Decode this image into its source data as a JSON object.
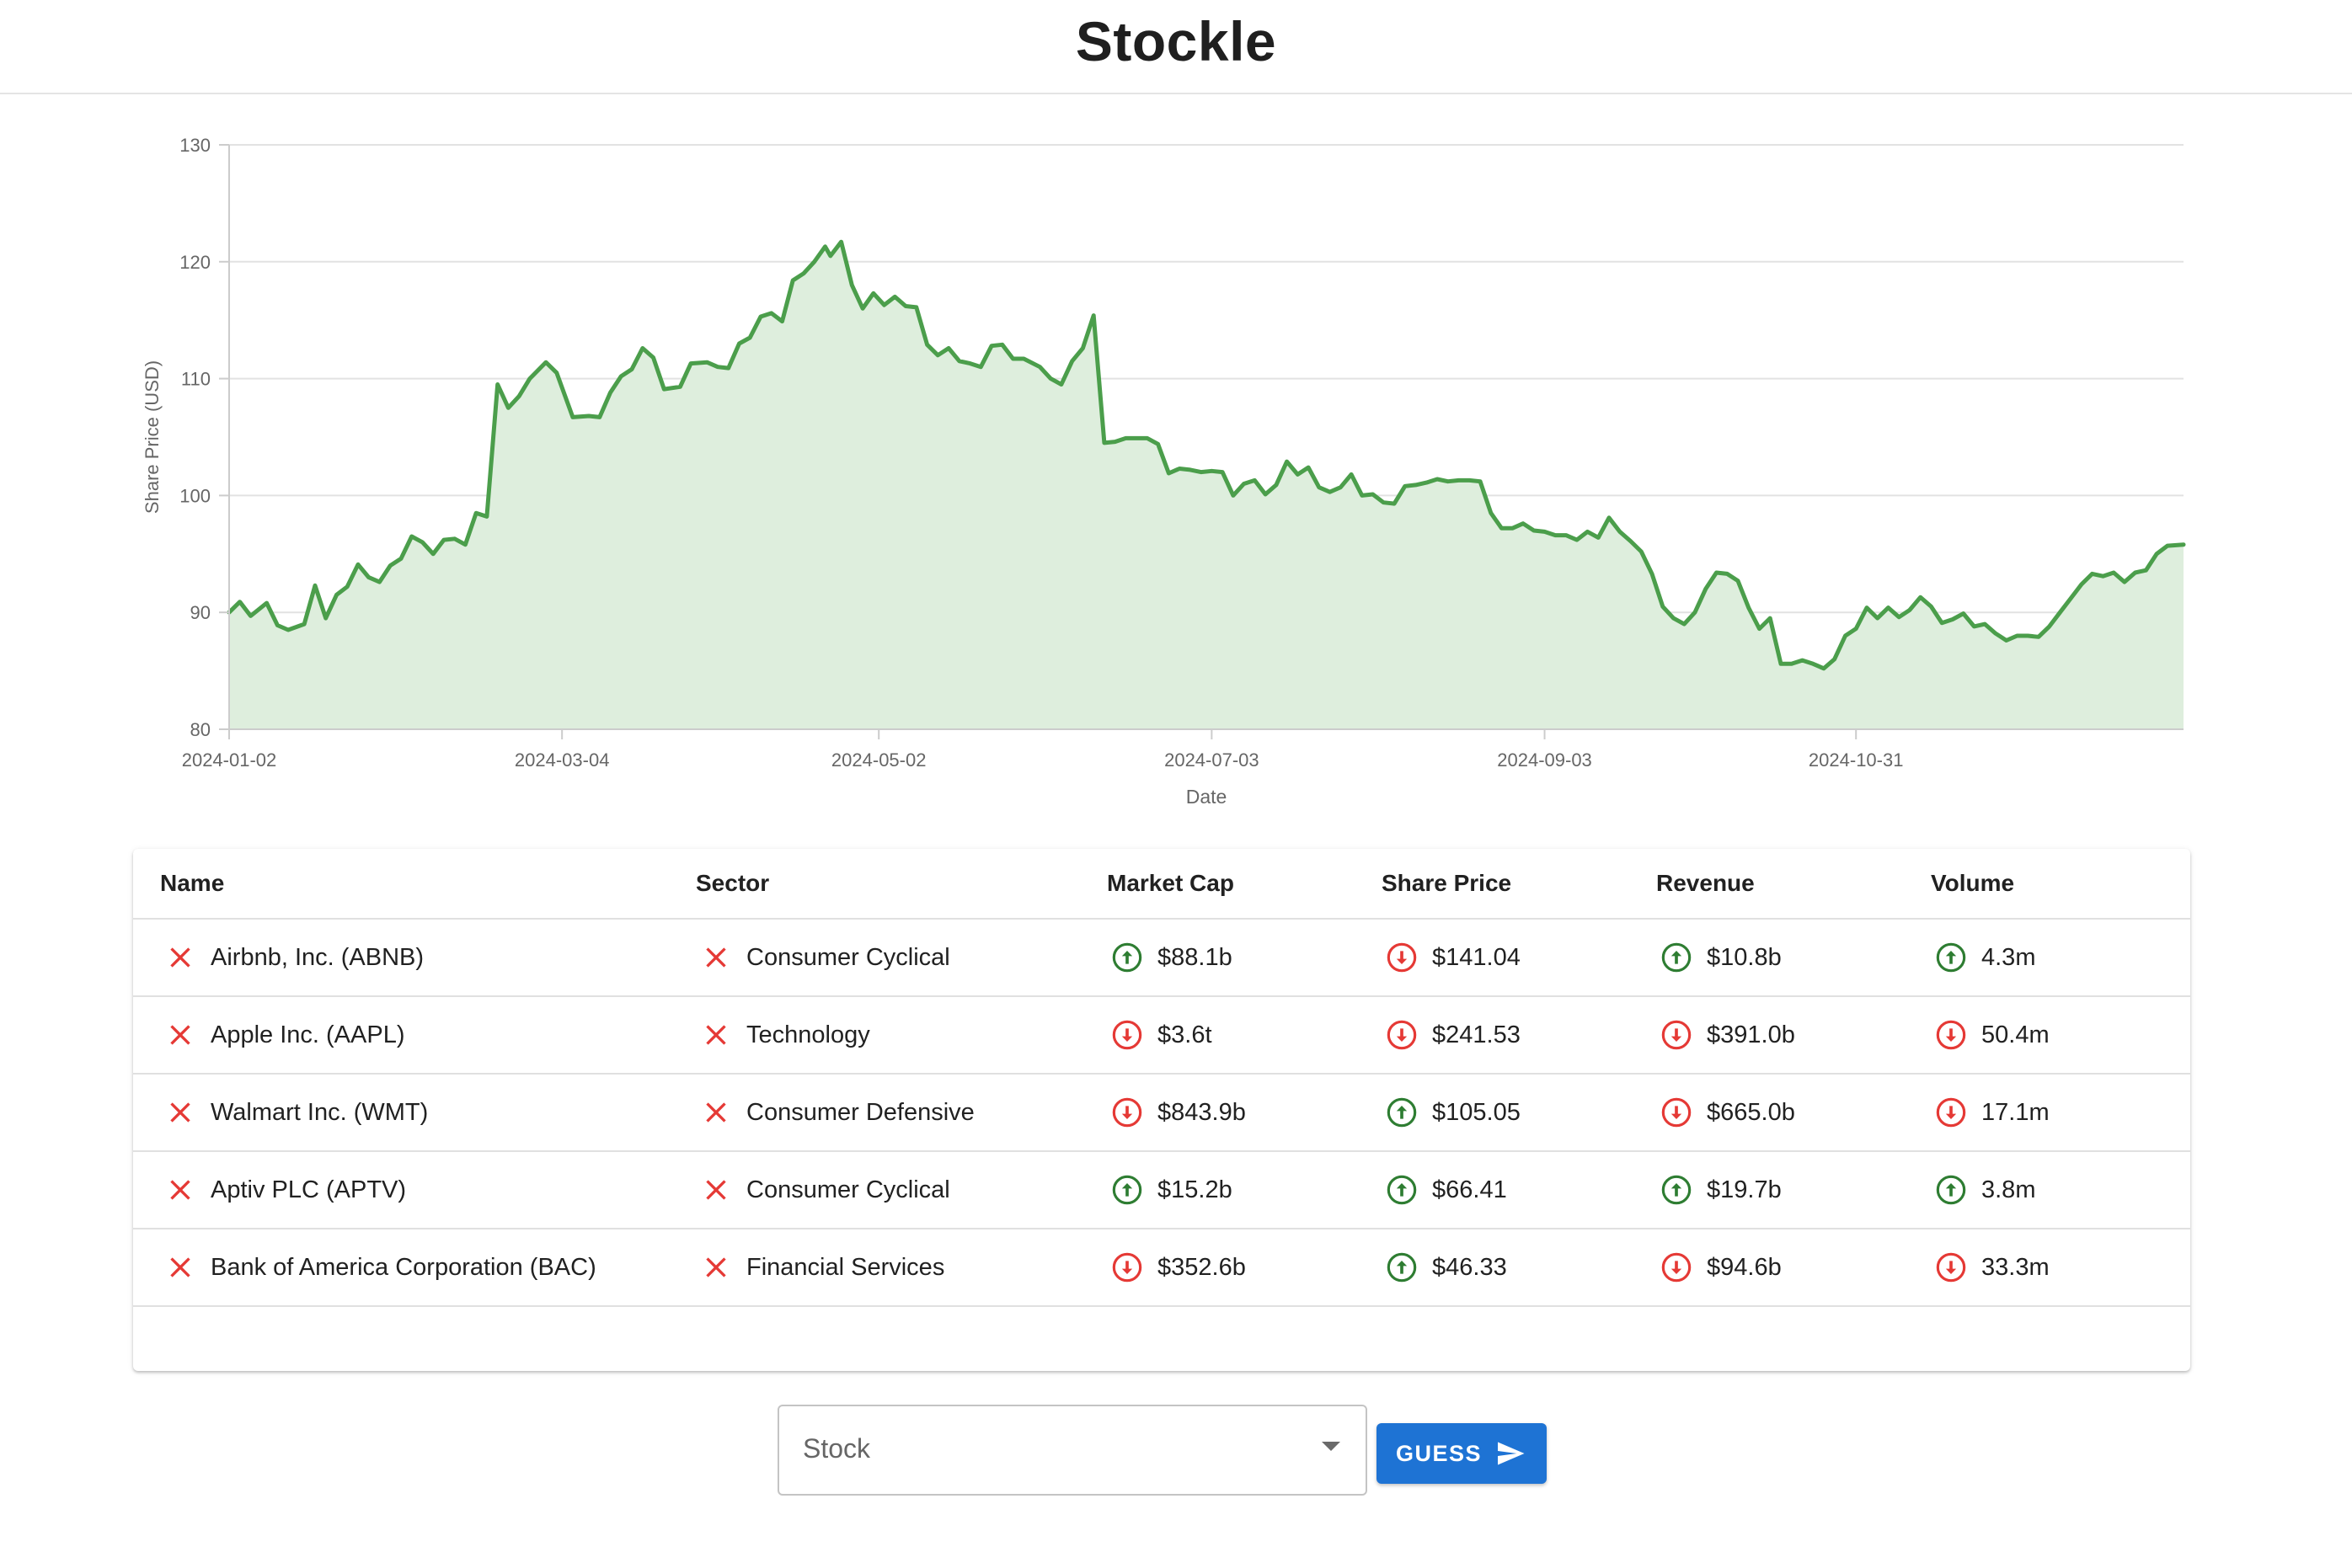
{
  "app": {
    "title": "Stockle"
  },
  "chart_data": {
    "type": "area",
    "title": "",
    "xlabel": "Date",
    "ylabel": "Share Price (USD)",
    "x_tick_labels": [
      "2024-01-02",
      "2024-03-04",
      "2024-05-02",
      "2024-07-03",
      "2024-09-03",
      "2024-10-31"
    ],
    "y_ticks": [
      80,
      90,
      100,
      110,
      120,
      130
    ],
    "ylim": [
      80,
      130
    ],
    "xlim": [
      "2024-01-02",
      "2024-12-31"
    ],
    "grid": "horizontal",
    "line_color": "#4b9e4b",
    "fill_color": "#deeedd",
    "points": [
      [
        "2024-01-02",
        90.0
      ],
      [
        "2024-01-04",
        90.9
      ],
      [
        "2024-01-06",
        89.7
      ],
      [
        "2024-01-09",
        90.8
      ],
      [
        "2024-01-11",
        88.9
      ],
      [
        "2024-01-13",
        88.5
      ],
      [
        "2024-01-16",
        89.0
      ],
      [
        "2024-01-18",
        92.3
      ],
      [
        "2024-01-20",
        89.5
      ],
      [
        "2024-01-22",
        91.5
      ],
      [
        "2024-01-24",
        92.2
      ],
      [
        "2024-01-26",
        94.1
      ],
      [
        "2024-01-28",
        93.0
      ],
      [
        "2024-01-30",
        92.6
      ],
      [
        "2024-02-01",
        94.0
      ],
      [
        "2024-02-03",
        94.6
      ],
      [
        "2024-02-05",
        96.5
      ],
      [
        "2024-02-07",
        96.0
      ],
      [
        "2024-02-09",
        95.0
      ],
      [
        "2024-02-11",
        96.2
      ],
      [
        "2024-02-13",
        96.3
      ],
      [
        "2024-02-15",
        95.8
      ],
      [
        "2024-02-17",
        98.5
      ],
      [
        "2024-02-19",
        98.2
      ],
      [
        "2024-02-21",
        109.5
      ],
      [
        "2024-02-23",
        107.5
      ],
      [
        "2024-02-25",
        108.5
      ],
      [
        "2024-02-27",
        110.0
      ],
      [
        "2024-03-01",
        111.4
      ],
      [
        "2024-03-03",
        110.5
      ],
      [
        "2024-03-06",
        106.7
      ],
      [
        "2024-03-09",
        106.8
      ],
      [
        "2024-03-11",
        106.7
      ],
      [
        "2024-03-13",
        108.8
      ],
      [
        "2024-03-15",
        110.2
      ],
      [
        "2024-03-17",
        110.8
      ],
      [
        "2024-03-19",
        112.6
      ],
      [
        "2024-03-21",
        111.8
      ],
      [
        "2024-03-23",
        109.1
      ],
      [
        "2024-03-26",
        109.3
      ],
      [
        "2024-03-28",
        111.3
      ],
      [
        "2024-03-31",
        111.4
      ],
      [
        "2024-04-02",
        111.0
      ],
      [
        "2024-04-04",
        110.9
      ],
      [
        "2024-04-06",
        113.0
      ],
      [
        "2024-04-08",
        113.5
      ],
      [
        "2024-04-10",
        115.3
      ],
      [
        "2024-04-12",
        115.6
      ],
      [
        "2024-04-14",
        114.9
      ],
      [
        "2024-04-16",
        118.4
      ],
      [
        "2024-04-18",
        119.0
      ],
      [
        "2024-04-20",
        120.0
      ],
      [
        "2024-04-22",
        121.3
      ],
      [
        "2024-04-23",
        120.5
      ],
      [
        "2024-04-25",
        121.7
      ],
      [
        "2024-04-27",
        118.0
      ],
      [
        "2024-04-29",
        116.0
      ],
      [
        "2024-05-01",
        117.3
      ],
      [
        "2024-05-03",
        116.3
      ],
      [
        "2024-05-05",
        117.0
      ],
      [
        "2024-05-07",
        116.2
      ],
      [
        "2024-05-09",
        116.1
      ],
      [
        "2024-05-11",
        112.9
      ],
      [
        "2024-05-13",
        112.0
      ],
      [
        "2024-05-15",
        112.6
      ],
      [
        "2024-05-17",
        111.5
      ],
      [
        "2024-05-19",
        111.3
      ],
      [
        "2024-05-21",
        111.0
      ],
      [
        "2024-05-23",
        112.8
      ],
      [
        "2024-05-25",
        112.9
      ],
      [
        "2024-05-27",
        111.7
      ],
      [
        "2024-05-29",
        111.7
      ],
      [
        "2024-06-01",
        111.0
      ],
      [
        "2024-06-03",
        110.0
      ],
      [
        "2024-06-05",
        109.5
      ],
      [
        "2024-06-07",
        111.5
      ],
      [
        "2024-06-09",
        112.6
      ],
      [
        "2024-06-11",
        115.4
      ],
      [
        "2024-06-13",
        104.5
      ],
      [
        "2024-06-15",
        104.6
      ],
      [
        "2024-06-17",
        104.9
      ],
      [
        "2024-06-19",
        104.9
      ],
      [
        "2024-06-21",
        104.9
      ],
      [
        "2024-06-23",
        104.4
      ],
      [
        "2024-06-25",
        101.9
      ],
      [
        "2024-06-27",
        102.3
      ],
      [
        "2024-06-29",
        102.2
      ],
      [
        "2024-07-01",
        102.0
      ],
      [
        "2024-07-03",
        102.1
      ],
      [
        "2024-07-05",
        102.0
      ],
      [
        "2024-07-07",
        100.0
      ],
      [
        "2024-07-09",
        101.0
      ],
      [
        "2024-07-11",
        101.3
      ],
      [
        "2024-07-13",
        100.1
      ],
      [
        "2024-07-15",
        100.9
      ],
      [
        "2024-07-17",
        102.9
      ],
      [
        "2024-07-19",
        101.8
      ],
      [
        "2024-07-21",
        102.4
      ],
      [
        "2024-07-23",
        100.7
      ],
      [
        "2024-07-25",
        100.3
      ],
      [
        "2024-07-27",
        100.7
      ],
      [
        "2024-07-29",
        101.8
      ],
      [
        "2024-07-31",
        100.0
      ],
      [
        "2024-08-02",
        100.1
      ],
      [
        "2024-08-04",
        99.4
      ],
      [
        "2024-08-06",
        99.3
      ],
      [
        "2024-08-08",
        100.8
      ],
      [
        "2024-08-10",
        100.9
      ],
      [
        "2024-08-12",
        101.1
      ],
      [
        "2024-08-14",
        101.4
      ],
      [
        "2024-08-16",
        101.2
      ],
      [
        "2024-08-18",
        101.3
      ],
      [
        "2024-08-20",
        101.3
      ],
      [
        "2024-08-22",
        101.2
      ],
      [
        "2024-08-24",
        98.5
      ],
      [
        "2024-08-26",
        97.2
      ],
      [
        "2024-08-28",
        97.2
      ],
      [
        "2024-08-30",
        97.6
      ],
      [
        "2024-09-01",
        97.0
      ],
      [
        "2024-09-03",
        96.9
      ],
      [
        "2024-09-05",
        96.6
      ],
      [
        "2024-09-07",
        96.6
      ],
      [
        "2024-09-09",
        96.2
      ],
      [
        "2024-09-11",
        96.9
      ],
      [
        "2024-09-13",
        96.4
      ],
      [
        "2024-09-15",
        98.1
      ],
      [
        "2024-09-17",
        96.9
      ],
      [
        "2024-09-19",
        96.1
      ],
      [
        "2024-09-21",
        95.2
      ],
      [
        "2024-09-23",
        93.3
      ],
      [
        "2024-09-25",
        90.5
      ],
      [
        "2024-09-27",
        89.5
      ],
      [
        "2024-09-29",
        89.0
      ],
      [
        "2024-10-01",
        90.0
      ],
      [
        "2024-10-03",
        92.0
      ],
      [
        "2024-10-05",
        93.4
      ],
      [
        "2024-10-07",
        93.3
      ],
      [
        "2024-10-09",
        92.7
      ],
      [
        "2024-10-11",
        90.4
      ],
      [
        "2024-10-13",
        88.6
      ],
      [
        "2024-10-15",
        89.5
      ],
      [
        "2024-10-17",
        85.6
      ],
      [
        "2024-10-19",
        85.6
      ],
      [
        "2024-10-21",
        85.9
      ],
      [
        "2024-10-23",
        85.6
      ],
      [
        "2024-10-25",
        85.2
      ],
      [
        "2024-10-27",
        86.0
      ],
      [
        "2024-10-29",
        88.0
      ],
      [
        "2024-10-31",
        88.6
      ],
      [
        "2024-11-02",
        90.4
      ],
      [
        "2024-11-04",
        89.5
      ],
      [
        "2024-11-06",
        90.4
      ],
      [
        "2024-11-08",
        89.6
      ],
      [
        "2024-11-10",
        90.2
      ],
      [
        "2024-11-12",
        91.3
      ],
      [
        "2024-11-14",
        90.5
      ],
      [
        "2024-11-16",
        89.1
      ],
      [
        "2024-11-18",
        89.4
      ],
      [
        "2024-11-20",
        89.9
      ],
      [
        "2024-11-22",
        88.8
      ],
      [
        "2024-11-24",
        89.0
      ],
      [
        "2024-11-26",
        88.2
      ],
      [
        "2024-11-28",
        87.6
      ],
      [
        "2024-11-30",
        88.0
      ],
      [
        "2024-12-02",
        88.0
      ],
      [
        "2024-12-04",
        87.9
      ],
      [
        "2024-12-06",
        88.8
      ],
      [
        "2024-12-08",
        90.0
      ],
      [
        "2024-12-10",
        91.2
      ],
      [
        "2024-12-12",
        92.4
      ],
      [
        "2024-12-14",
        93.3
      ],
      [
        "2024-12-16",
        93.1
      ],
      [
        "2024-12-18",
        93.4
      ],
      [
        "2024-12-20",
        92.6
      ],
      [
        "2024-12-22",
        93.4
      ],
      [
        "2024-12-24",
        93.6
      ],
      [
        "2024-12-26",
        95.0
      ],
      [
        "2024-12-28",
        95.7
      ],
      [
        "2024-12-31",
        95.8
      ]
    ]
  },
  "table": {
    "headers": [
      "Name",
      "Sector",
      "Market Cap",
      "Share Price",
      "Revenue",
      "Volume"
    ],
    "rows": [
      {
        "name": "Airbnb, Inc. (ABNB)",
        "sector": "Consumer Cyclical",
        "market_cap": "$88.1b",
        "market_cap_dir": "up",
        "share_price": "$141.04",
        "share_price_dir": "down",
        "revenue": "$10.8b",
        "revenue_dir": "up",
        "volume": "4.3m",
        "volume_dir": "up"
      },
      {
        "name": "Apple Inc. (AAPL)",
        "sector": "Technology",
        "market_cap": "$3.6t",
        "market_cap_dir": "down",
        "share_price": "$241.53",
        "share_price_dir": "down",
        "revenue": "$391.0b",
        "revenue_dir": "down",
        "volume": "50.4m",
        "volume_dir": "down"
      },
      {
        "name": "Walmart Inc. (WMT)",
        "sector": "Consumer Defensive",
        "market_cap": "$843.9b",
        "market_cap_dir": "down",
        "share_price": "$105.05",
        "share_price_dir": "up",
        "revenue": "$665.0b",
        "revenue_dir": "down",
        "volume": "17.1m",
        "volume_dir": "down"
      },
      {
        "name": "Aptiv PLC (APTV)",
        "sector": "Consumer Cyclical",
        "market_cap": "$15.2b",
        "market_cap_dir": "up",
        "share_price": "$66.41",
        "share_price_dir": "up",
        "revenue": "$19.7b",
        "revenue_dir": "up",
        "volume": "3.8m",
        "volume_dir": "up"
      },
      {
        "name": "Bank of America Corporation (BAC)",
        "sector": "Financial Services",
        "market_cap": "$352.6b",
        "market_cap_dir": "down",
        "share_price": "$46.33",
        "share_price_dir": "up",
        "revenue": "$94.6b",
        "revenue_dir": "down",
        "volume": "33.3m",
        "volume_dir": "down"
      }
    ]
  },
  "guess_form": {
    "stock_label": "Stock",
    "button_label": "GUESS",
    "dropdown_icon": "chevron-down-icon",
    "button_icon": "send-icon"
  },
  "colors": {
    "wrong": "#e53935",
    "up": "#2e7d32",
    "down": "#e53935",
    "button": "#1e73d4"
  }
}
